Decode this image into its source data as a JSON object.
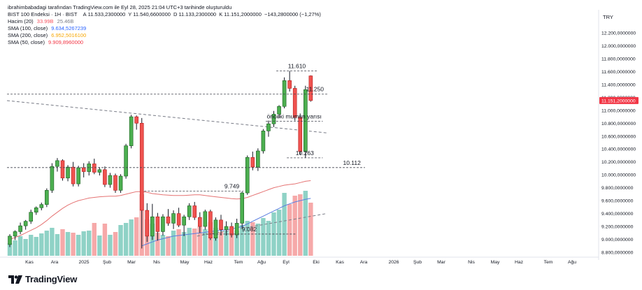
{
  "header": {
    "attribution": "ibrahimbabadagi tarafından TradingView.com ile Eyl 28, 2025 21:04 UTC+3 tarihinde oluşturuldu"
  },
  "legend": {
    "symbol": "BIST 100 Endeksi · 1H · BIST",
    "ohlc": {
      "o_label": "A",
      "o": "11.533,2300000",
      "h_label": "Y",
      "h": "11.540,6600000",
      "l_label": "D",
      "l": "11.133,2300000",
      "c_label": "K",
      "c": "11.151,2000000",
      "change": "−143,2800000 (−1,27%)"
    },
    "volume": {
      "label": "Hacim (20)",
      "v1": "33.99B",
      "v2": "25.46B",
      "v1_color": "#f7525f",
      "v2_color": "#787b86"
    },
    "sma100": {
      "label": "SMA (100, close)",
      "value": "9.634,5267239",
      "color": "#2962ff"
    },
    "sma200": {
      "label": "SMA (200, close)",
      "value": "6.952,5016100",
      "color": "#f7a600"
    },
    "sma50": {
      "label": "SMA (50, close)",
      "value": "9.909,8960000",
      "color": "#f23645"
    }
  },
  "colors": {
    "up": "#4caf50",
    "down": "#ef5350",
    "up_border": "#1b5e20",
    "down_border": "#b71c1c",
    "vol_up": "#8fd2c6",
    "vol_down": "#f6a9a9",
    "sma50": "#e57373",
    "sma100": "#5b7fe0",
    "price_label": "#f23645"
  },
  "chart_data": {
    "type": "candlestick",
    "currency_label": "TRY",
    "y_axis": {
      "min": 8800,
      "max": 12200,
      "ticks": [
        "12.200,0000000",
        "12.000,0000000",
        "11.800,0000000",
        "11.600,0000000",
        "11.400,0000000",
        "11.200,0000000",
        "11.000,0000000",
        "10.800,0000000",
        "10.600,0000000",
        "10.400,0000000",
        "10.200,0000000",
        "10.000,0000000",
        "9.800,0000000",
        "9.600,0000000",
        "9.400,0000000",
        "9.200,0000000",
        "9.000,0000000",
        "8.800,0000000"
      ]
    },
    "last_price": {
      "value": 11151.2,
      "label": "11.151,2000000"
    },
    "x_axis_labels": [
      "Kas",
      "Ara",
      "2025",
      "Şub",
      "Mar",
      "Nis",
      "May",
      "Haz",
      "Tem",
      "Ağu",
      "Eyl",
      "Eki",
      "Kas",
      "Ara",
      "2026",
      "Şub",
      "Mar",
      "Nis",
      "May",
      "Haz",
      "Tem",
      "Ağu"
    ],
    "candles": [
      {
        "o": 8920,
        "h": 9080,
        "l": 8880,
        "c": 9050
      },
      {
        "o": 9050,
        "h": 9140,
        "l": 8990,
        "c": 9120
      },
      {
        "o": 9120,
        "h": 9260,
        "l": 9080,
        "c": 9210
      },
      {
        "o": 9210,
        "h": 9300,
        "l": 9150,
        "c": 9280
      },
      {
        "o": 9280,
        "h": 9460,
        "l": 9240,
        "c": 9420
      },
      {
        "o": 9420,
        "h": 9510,
        "l": 9380,
        "c": 9490
      },
      {
        "o": 9490,
        "h": 9570,
        "l": 9450,
        "c": 9540
      },
      {
        "o": 9540,
        "h": 9790,
        "l": 9500,
        "c": 9760
      },
      {
        "o": 9760,
        "h": 10180,
        "l": 9720,
        "c": 10130
      },
      {
        "o": 10130,
        "h": 10260,
        "l": 10050,
        "c": 10220
      },
      {
        "o": 10220,
        "h": 10240,
        "l": 9910,
        "c": 9950
      },
      {
        "o": 9950,
        "h": 10150,
        "l": 9900,
        "c": 10120
      },
      {
        "o": 10120,
        "h": 10200,
        "l": 9820,
        "c": 9860
      },
      {
        "o": 9860,
        "h": 10140,
        "l": 9820,
        "c": 10110
      },
      {
        "o": 10110,
        "h": 10180,
        "l": 9960,
        "c": 10050
      },
      {
        "o": 10050,
        "h": 10210,
        "l": 9990,
        "c": 10170
      },
      {
        "o": 10170,
        "h": 10250,
        "l": 10010,
        "c": 10040
      },
      {
        "o": 10040,
        "h": 10120,
        "l": 9990,
        "c": 10080
      },
      {
        "o": 10080,
        "h": 10130,
        "l": 9810,
        "c": 9850
      },
      {
        "o": 9850,
        "h": 10030,
        "l": 9800,
        "c": 9990
      },
      {
        "o": 9990,
        "h": 10020,
        "l": 9720,
        "c": 9760
      },
      {
        "o": 9760,
        "h": 10010,
        "l": 9720,
        "c": 9980
      },
      {
        "o": 9980,
        "h": 10480,
        "l": 9940,
        "c": 10450
      },
      {
        "o": 10450,
        "h": 10930,
        "l": 10410,
        "c": 10900
      },
      {
        "o": 10900,
        "h": 10920,
        "l": 10700,
        "c": 10800
      },
      {
        "o": 10800,
        "h": 10880,
        "l": 8860,
        "c": 9450
      },
      {
        "o": 9450,
        "h": 9560,
        "l": 8960,
        "c": 9050
      },
      {
        "o": 9050,
        "h": 9550,
        "l": 8990,
        "c": 9350
      },
      {
        "o": 9350,
        "h": 9410,
        "l": 8980,
        "c": 9120
      },
      {
        "o": 9120,
        "h": 9390,
        "l": 9060,
        "c": 9350
      },
      {
        "o": 9350,
        "h": 9470,
        "l": 9210,
        "c": 9250
      },
      {
        "o": 9250,
        "h": 9450,
        "l": 9160,
        "c": 9400
      },
      {
        "o": 9400,
        "h": 9490,
        "l": 9190,
        "c": 9220
      },
      {
        "o": 9220,
        "h": 9380,
        "l": 9050,
        "c": 9350
      },
      {
        "o": 9350,
        "h": 9560,
        "l": 9300,
        "c": 9520
      },
      {
        "o": 9520,
        "h": 9580,
        "l": 9300,
        "c": 9340
      },
      {
        "o": 9340,
        "h": 9420,
        "l": 9100,
        "c": 9200
      },
      {
        "o": 9200,
        "h": 9460,
        "l": 9150,
        "c": 9430
      },
      {
        "o": 9430,
        "h": 9460,
        "l": 8990,
        "c": 9020
      },
      {
        "o": 9020,
        "h": 9340,
        "l": 8980,
        "c": 9300
      },
      {
        "o": 9300,
        "h": 9380,
        "l": 9060,
        "c": 9150
      },
      {
        "o": 9150,
        "h": 9280,
        "l": 9060,
        "c": 9200
      },
      {
        "o": 9200,
        "h": 9260,
        "l": 9030,
        "c": 9070
      },
      {
        "o": 9070,
        "h": 9320,
        "l": 9020,
        "c": 9250
      },
      {
        "o": 9250,
        "h": 9740,
        "l": 9180,
        "c": 9720
      },
      {
        "o": 9720,
        "h": 10300,
        "l": 9690,
        "c": 10270
      },
      {
        "o": 10270,
        "h": 10360,
        "l": 10070,
        "c": 10120
      },
      {
        "o": 10120,
        "h": 10410,
        "l": 10060,
        "c": 10370
      },
      {
        "o": 10370,
        "h": 10710,
        "l": 10330,
        "c": 10680
      },
      {
        "o": 10680,
        "h": 10840,
        "l": 10590,
        "c": 10790
      },
      {
        "o": 10790,
        "h": 10990,
        "l": 10740,
        "c": 10940
      },
      {
        "o": 10940,
        "h": 11080,
        "l": 10880,
        "c": 11060
      },
      {
        "o": 11060,
        "h": 11510,
        "l": 11030,
        "c": 11460
      },
      {
        "o": 11460,
        "h": 11610,
        "l": 11290,
        "c": 11340
      },
      {
        "o": 11340,
        "h": 11380,
        "l": 10840,
        "c": 10890
      },
      {
        "o": 10890,
        "h": 10950,
        "l": 10310,
        "c": 10360
      },
      {
        "o": 10360,
        "h": 11380,
        "l": 10263,
        "c": 11320
      },
      {
        "o": 11533.23,
        "h": 11540.66,
        "l": 11133.23,
        "c": 11151.2
      }
    ],
    "volume": [
      {
        "v": 0.18,
        "up": true
      },
      {
        "v": 0.22,
        "up": true
      },
      {
        "v": 0.28,
        "up": true
      },
      {
        "v": 0.24,
        "up": true
      },
      {
        "v": 0.3,
        "up": true
      },
      {
        "v": 0.27,
        "up": true
      },
      {
        "v": 0.32,
        "up": true
      },
      {
        "v": 0.36,
        "up": true
      },
      {
        "v": 0.4,
        "up": true
      },
      {
        "v": 0.31,
        "up": true
      },
      {
        "v": 0.38,
        "up": false
      },
      {
        "v": 0.34,
        "up": true
      },
      {
        "v": 0.33,
        "up": false
      },
      {
        "v": 0.3,
        "up": true
      },
      {
        "v": 0.35,
        "up": true
      },
      {
        "v": 0.36,
        "up": true
      },
      {
        "v": 0.47,
        "up": false
      },
      {
        "v": 0.29,
        "up": true
      },
      {
        "v": 0.46,
        "up": false
      },
      {
        "v": 0.3,
        "up": true
      },
      {
        "v": 0.34,
        "up": false
      },
      {
        "v": 0.44,
        "up": true
      },
      {
        "v": 0.47,
        "up": true
      },
      {
        "v": 0.52,
        "up": true
      },
      {
        "v": 0.55,
        "up": false
      },
      {
        "v": 0.88,
        "up": false
      },
      {
        "v": 0.52,
        "up": false
      },
      {
        "v": 0.46,
        "up": true
      },
      {
        "v": 0.33,
        "up": false
      },
      {
        "v": 0.3,
        "up": true
      },
      {
        "v": 0.28,
        "up": false
      },
      {
        "v": 0.36,
        "up": true
      },
      {
        "v": 0.38,
        "up": false
      },
      {
        "v": 0.34,
        "up": true
      },
      {
        "v": 0.4,
        "up": true
      },
      {
        "v": 0.39,
        "up": false
      },
      {
        "v": 0.42,
        "up": false
      },
      {
        "v": 0.38,
        "up": true
      },
      {
        "v": 0.48,
        "up": false
      },
      {
        "v": 0.4,
        "up": true
      },
      {
        "v": 0.34,
        "up": false
      },
      {
        "v": 0.36,
        "up": true
      },
      {
        "v": 0.33,
        "up": false
      },
      {
        "v": 0.36,
        "up": true
      },
      {
        "v": 0.44,
        "up": true
      },
      {
        "v": 0.5,
        "up": true
      },
      {
        "v": 0.48,
        "up": false
      },
      {
        "v": 0.46,
        "up": true
      },
      {
        "v": 0.54,
        "up": true
      },
      {
        "v": 0.5,
        "up": true
      },
      {
        "v": 0.62,
        "up": true
      },
      {
        "v": 0.66,
        "up": true
      },
      {
        "v": 0.9,
        "up": true
      },
      {
        "v": 0.74,
        "up": false
      },
      {
        "v": 0.86,
        "up": false
      },
      {
        "v": 0.88,
        "up": false
      },
      {
        "v": 0.93,
        "up": true
      },
      {
        "v": 0.76,
        "up": false
      }
    ],
    "sma50": [
      9000,
      9030,
      9060,
      9100,
      9140,
      9180,
      9230,
      9290,
      9360,
      9420,
      9480,
      9530,
      9570,
      9600,
      9620,
      9640,
      9650,
      9660,
      9665,
      9670,
      9670,
      9680,
      9700,
      9720,
      9740,
      9740,
      9730,
      9710,
      9700,
      9690,
      9685,
      9680,
      9680,
      9680,
      9685,
      9690,
      9690,
      9680,
      9670,
      9660,
      9650,
      9640,
      9630,
      9625,
      9630,
      9650,
      9680,
      9710,
      9740,
      9770,
      9800,
      9820,
      9840,
      9850,
      9860,
      9880,
      9900,
      9910
    ],
    "sma100": [
      null,
      null,
      null,
      null,
      null,
      null,
      null,
      null,
      null,
      null,
      null,
      null,
      null,
      null,
      null,
      null,
      null,
      null,
      null,
      null,
      null,
      null,
      null,
      null,
      null,
      8900,
      8930,
      8960,
      8990,
      9010,
      9030,
      9050,
      9060,
      9070,
      9080,
      9090,
      9100,
      9110,
      9120,
      9130,
      9140,
      9150,
      9160,
      9180,
      9200,
      9240,
      9280,
      9320,
      9360,
      9400,
      9440,
      9480,
      9520,
      9550,
      9580,
      9600,
      9620,
      9634.5
    ],
    "levels": [
      {
        "value": 11610,
        "label": "11.610",
        "x0": 51,
        "x1": 58,
        "label_at": "mid"
      },
      {
        "value": 11250,
        "label": "11.250",
        "x0": 0,
        "x1": 60,
        "label_at": "end"
      },
      {
        "value": 10830,
        "label": "önceki mumun yarısı",
        "x0": 49,
        "x1": 59,
        "label_at": "mid"
      },
      {
        "value": 10263,
        "label": "10.263",
        "x0": 53,
        "x1": 59,
        "label_at": "mid"
      },
      {
        "value": 10112,
        "label": "10.112",
        "x0": 0,
        "x1": 67,
        "label_at": "end"
      },
      {
        "value": 9749,
        "label": "9.749",
        "x0": 26,
        "x1": 44,
        "label_at": "end"
      },
      {
        "value": 9082,
        "label": "9.082",
        "x0": 37,
        "x1": 54,
        "label_at": "mid"
      }
    ],
    "trendlines": [
      {
        "x0": 0,
        "y0": 11150,
        "x1": 60,
        "y1": 10650
      },
      {
        "x0": 36,
        "y0": 9050,
        "x1": 60,
        "y1": 9400
      }
    ],
    "logo": "TradingView"
  }
}
